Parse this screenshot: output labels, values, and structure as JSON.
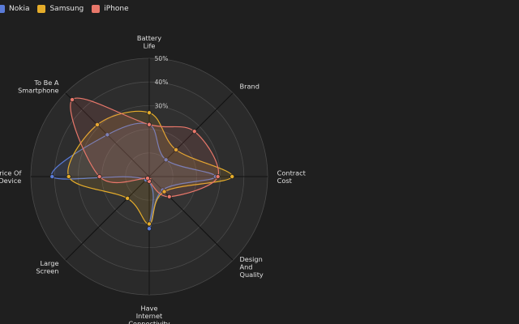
{
  "chart_data": {
    "type": "radar",
    "axes": [
      "Battery Life",
      "Brand",
      "Contract Cost",
      "Design And Quality",
      "Have Internet Connectivity",
      "Large Screen",
      "Price Of Device",
      "To Be A Smartphone"
    ],
    "scale": {
      "min": 0,
      "max": 50,
      "unit": "%",
      "ticks": [
        10,
        20,
        30,
        40,
        50
      ],
      "tick_labels": [
        "",
        "",
        "30%",
        "40%",
        "50%"
      ]
    },
    "series": [
      {
        "name": "Nokia",
        "color": "#5a7bd8",
        "values": [
          22,
          10,
          28,
          8,
          22,
          2,
          41,
          25
        ]
      },
      {
        "name": "Samsung",
        "color": "#e6ad2a",
        "values": [
          27,
          16,
          35,
          9,
          20,
          13,
          34,
          31
        ]
      },
      {
        "name": "iPhone",
        "color": "#e8776a",
        "values": [
          22,
          27,
          29,
          12,
          2,
          1,
          21,
          46
        ]
      }
    ],
    "legend_position": "top-left",
    "grid": true
  }
}
